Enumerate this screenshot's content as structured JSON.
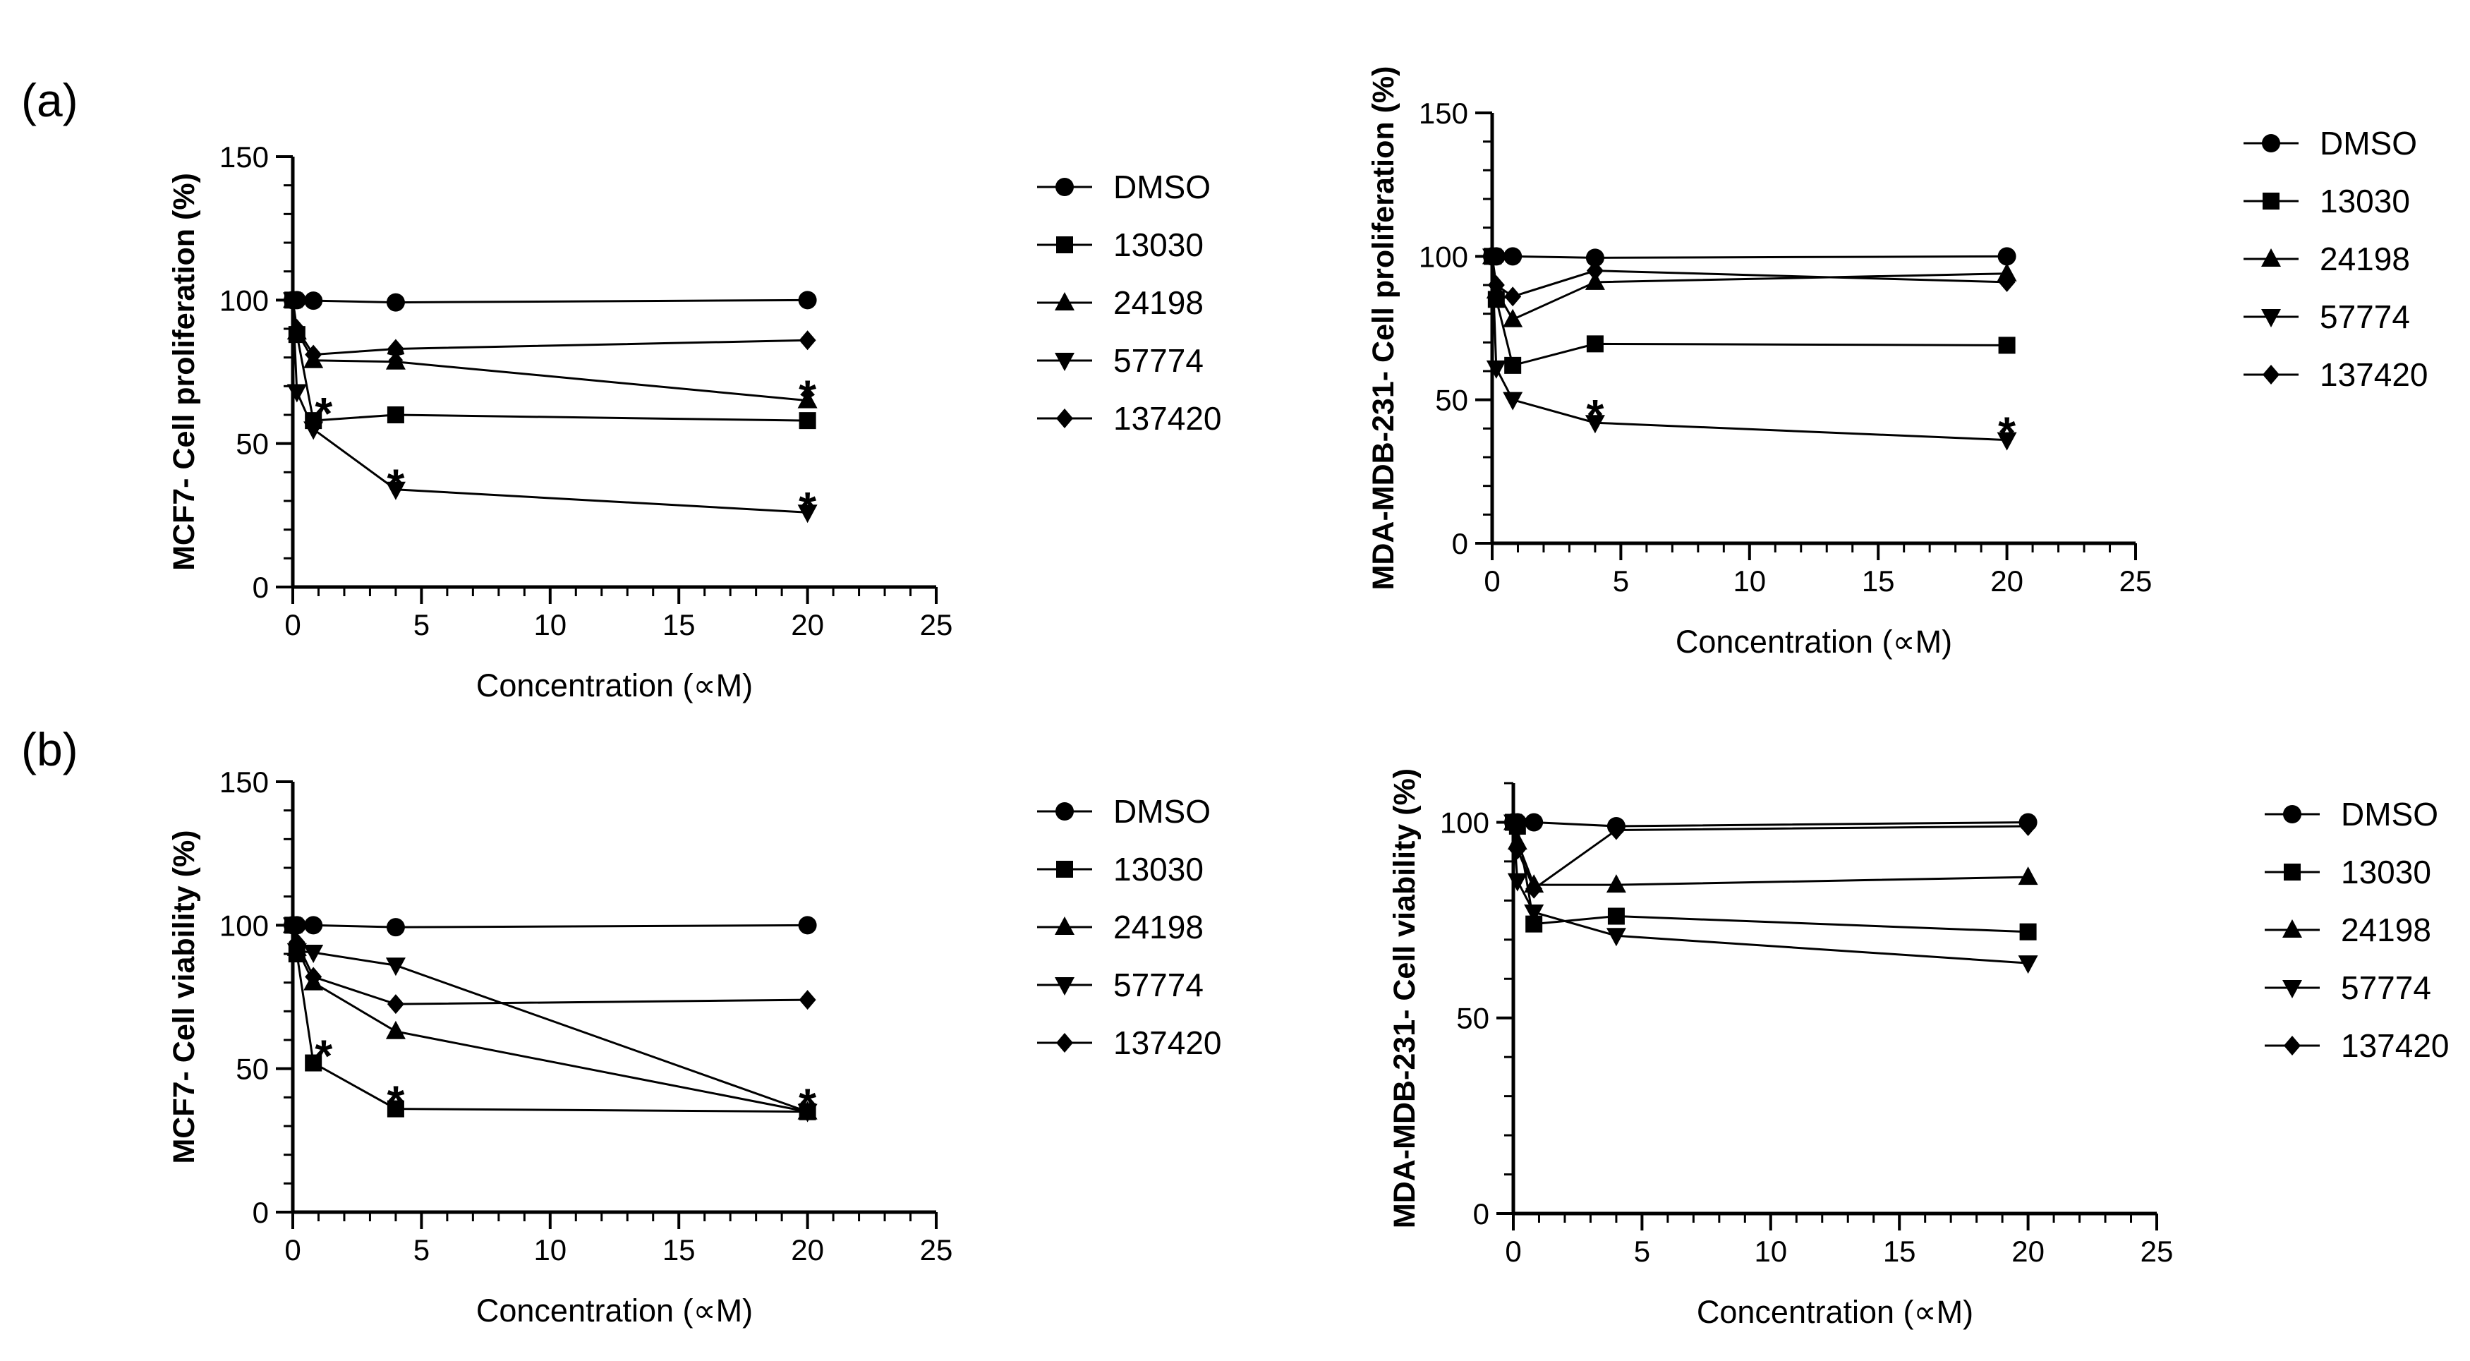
{
  "panel_labels": [
    "(a)",
    "(b)"
  ],
  "chart_data": [
    {
      "type": "line",
      "panel": "(a)",
      "xlabel": "Concentration (∝M)",
      "ylabel": "MCF7- Cell proliferation (%)",
      "xlim": [
        0,
        25
      ],
      "ylim": [
        0,
        150
      ],
      "xticks": [
        0,
        5,
        10,
        15,
        20,
        25
      ],
      "yticks": [
        0,
        50,
        100,
        150
      ],
      "x": [
        0,
        0.16,
        0.8,
        4,
        20
      ],
      "series": [
        {
          "name": "DMSO",
          "marker": "circle",
          "values": [
            100,
            100,
            99.8,
            99.2,
            100
          ]
        },
        {
          "name": "13030",
          "marker": "square",
          "values": [
            100,
            88,
            58,
            60,
            58
          ]
        },
        {
          "name": "24198",
          "marker": "triangle-up",
          "values": [
            100,
            89,
            79,
            78.5,
            65
          ]
        },
        {
          "name": "57774",
          "marker": "triangle-down",
          "values": [
            100,
            68,
            55,
            34,
            26
          ]
        },
        {
          "name": "137420",
          "marker": "diamond",
          "values": [
            100,
            90,
            81,
            83,
            86
          ]
        }
      ],
      "annotations": [
        {
          "text": "*",
          "x": 1.2,
          "y": 62
        },
        {
          "text": "*",
          "x": 4,
          "y": 80
        },
        {
          "text": "*",
          "x": 4,
          "y": 37
        },
        {
          "text": "*",
          "x": 20,
          "y": 68
        },
        {
          "text": "*",
          "x": 20,
          "y": 29
        }
      ],
      "legend": "right",
      "grid": false
    },
    {
      "type": "line",
      "panel": "(a)",
      "xlabel": "Concentration (∝M)",
      "ylabel": "MDA-MDB-231- Cell proliferation (%)",
      "xlim": [
        0,
        25
      ],
      "ylim": [
        0,
        150
      ],
      "xticks": [
        0,
        5,
        10,
        15,
        20,
        25
      ],
      "yticks": [
        0,
        50,
        100,
        150
      ],
      "x": [
        0,
        0.16,
        0.8,
        4,
        20
      ],
      "series": [
        {
          "name": "DMSO",
          "marker": "circle",
          "values": [
            100,
            100,
            100,
            99.5,
            100
          ]
        },
        {
          "name": "13030",
          "marker": "square",
          "values": [
            100,
            85,
            62,
            69.5,
            69
          ]
        },
        {
          "name": "24198",
          "marker": "triangle-up",
          "values": [
            100,
            88,
            78,
            91,
            94
          ]
        },
        {
          "name": "57774",
          "marker": "triangle-down",
          "values": [
            100,
            61,
            50,
            42,
            36
          ]
        },
        {
          "name": "137420",
          "marker": "diamond",
          "values": [
            100,
            90,
            86,
            95,
            91
          ]
        }
      ],
      "annotations": [
        {
          "text": "*",
          "x": 4,
          "y": 46
        },
        {
          "text": "*",
          "x": 20,
          "y": 40
        }
      ],
      "legend": "right",
      "grid": false
    },
    {
      "type": "line",
      "panel": "(b)",
      "xlabel": "Concentration (∝M)",
      "ylabel": "MCF7- Cell viability (%)",
      "xlim": [
        0,
        25
      ],
      "ylim": [
        0,
        150
      ],
      "xticks": [
        0,
        5,
        10,
        15,
        20,
        25
      ],
      "yticks": [
        0,
        50,
        100,
        150
      ],
      "x": [
        0,
        0.16,
        0.8,
        4,
        20
      ],
      "series": [
        {
          "name": "DMSO",
          "marker": "circle",
          "values": [
            100,
            100,
            100,
            99.3,
            100
          ]
        },
        {
          "name": "13030",
          "marker": "square",
          "values": [
            100,
            90,
            52,
            36,
            35
          ]
        },
        {
          "name": "24198",
          "marker": "triangle-up",
          "values": [
            100,
            92,
            80,
            63,
            35
          ]
        },
        {
          "name": "57774",
          "marker": "triangle-down",
          "values": [
            100,
            91,
            90.5,
            86,
            35
          ]
        },
        {
          "name": "137420",
          "marker": "diamond",
          "values": [
            100,
            94,
            82,
            72.5,
            74
          ]
        }
      ],
      "annotations": [
        {
          "text": "*",
          "x": 1.2,
          "y": 56
        },
        {
          "text": "*",
          "x": 4,
          "y": 40
        },
        {
          "text": "*",
          "x": 20,
          "y": 39
        }
      ],
      "legend": "right",
      "grid": false
    },
    {
      "type": "line",
      "panel": "(b)",
      "xlabel": "Concentration (∝M)",
      "ylabel": "MDA-MDB-231- Cell viability (%)",
      "xlim": [
        0,
        25
      ],
      "ylim": [
        0,
        110
      ],
      "xticks": [
        0,
        5,
        10,
        15,
        20,
        25
      ],
      "yticks": [
        0,
        50,
        100
      ],
      "x": [
        0,
        0.16,
        0.8,
        4,
        20
      ],
      "series": [
        {
          "name": "DMSO",
          "marker": "circle",
          "values": [
            100,
            100,
            100,
            99,
            100
          ]
        },
        {
          "name": "13030",
          "marker": "square",
          "values": [
            100,
            99,
            74,
            76,
            72
          ]
        },
        {
          "name": "24198",
          "marker": "triangle-up",
          "values": [
            100,
            95,
            84,
            84,
            86
          ]
        },
        {
          "name": "57774",
          "marker": "triangle-down",
          "values": [
            100,
            85,
            77,
            71,
            64
          ]
        },
        {
          "name": "137420",
          "marker": "diamond",
          "values": [
            100,
            93,
            83,
            98,
            99
          ]
        }
      ],
      "annotations": [],
      "legend": "right",
      "grid": false
    }
  ]
}
